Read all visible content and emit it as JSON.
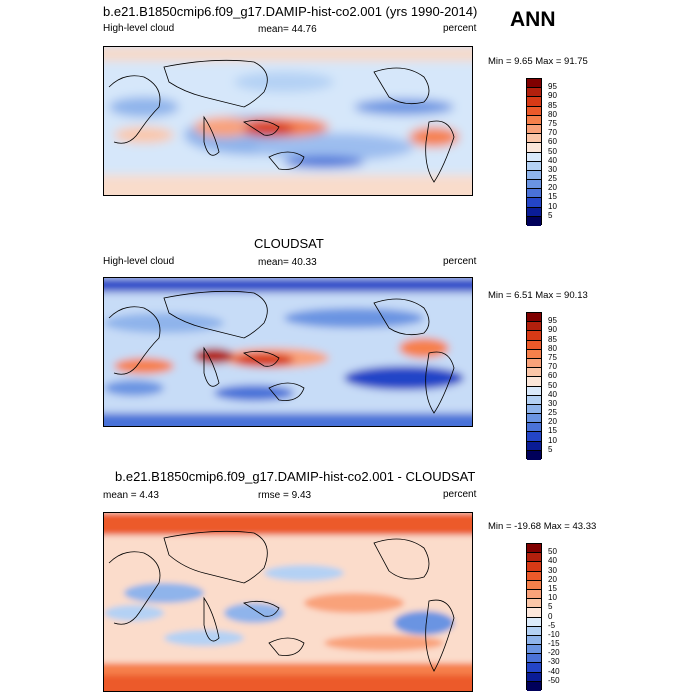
{
  "season": "ANN",
  "panels": [
    {
      "title": "b.e21.B1850cmip6.f09_g17.DAMIP-hist-co2.001 (yrs 1990-2014)",
      "left_label": "High-level cloud",
      "center_label": "mean=  44.76",
      "right_label": "percent",
      "stats": "Min =   9.65 Max =  91.75",
      "colorbar_levels": [
        "95",
        "90",
        "85",
        "80",
        "75",
        "70",
        "60",
        "50",
        "40",
        "30",
        "25",
        "20",
        "15",
        "10",
        "5"
      ]
    },
    {
      "title": "CLOUDSAT",
      "left_label": "High-level cloud",
      "center_label": "mean=  40.33",
      "right_label": "percent",
      "stats": "Min =   6.51 Max =  90.13",
      "colorbar_levels": [
        "95",
        "90",
        "85",
        "80",
        "75",
        "70",
        "60",
        "50",
        "40",
        "30",
        "25",
        "20",
        "15",
        "10",
        "5"
      ]
    },
    {
      "title": "b.e21.B1850cmip6.f09_g17.DAMIP-hist-co2.001 - CLOUDSAT",
      "left_label": "mean =   4.43",
      "center_label": "rmse =   9.43",
      "right_label": "percent",
      "stats": "Min = -19.68 Max =  43.33",
      "colorbar_levels": [
        "50",
        "40",
        "30",
        "20",
        "15",
        "10",
        "5",
        "0",
        "-5",
        "-10",
        "-15",
        "-20",
        "-30",
        "-40",
        "-50"
      ]
    }
  ],
  "colors": {
    "abs_scale": [
      "#7f0000",
      "#b2200d",
      "#d73a16",
      "#ec5a2a",
      "#f6804b",
      "#f9a27a",
      "#fbc6a8",
      "#fbe6d9",
      "#d9e9fb",
      "#b4d1f4",
      "#8fb4eb",
      "#6a94e2",
      "#4a72d8",
      "#2445c7",
      "#0a1c96",
      "#00005a"
    ],
    "diff_scale": [
      "#7f0000",
      "#b2200d",
      "#d73a16",
      "#ec5a2a",
      "#f6804b",
      "#f9a27a",
      "#fbc6a8",
      "#fde7dc",
      "#dcebfb",
      "#b4d1f4",
      "#8fb4eb",
      "#6a94e2",
      "#4a72d8",
      "#2445c7",
      "#0a1c96",
      "#00005a"
    ]
  }
}
